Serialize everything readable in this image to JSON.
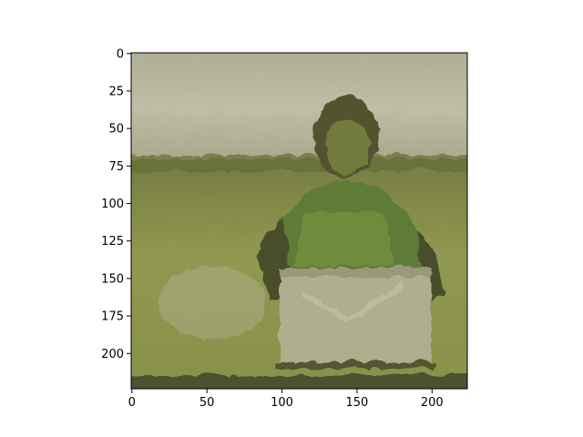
{
  "figure": {
    "type": "image-plot",
    "image_description_colors": {
      "sky": "#d8d6c0",
      "field": "#8a9a3a",
      "field_dark": "#556020",
      "figure_green": "#5f8a2a",
      "figure_dark": "#2a2a10",
      "box": "#c8c8a8",
      "bottom_strip": "#2f3a18"
    },
    "x_axis": {
      "range": [
        0,
        224
      ],
      "ticks": [
        {
          "value": 0,
          "label": "0"
        },
        {
          "value": 50,
          "label": "50"
        },
        {
          "value": 100,
          "label": "100"
        },
        {
          "value": 150,
          "label": "150"
        },
        {
          "value": 200,
          "label": "200"
        }
      ]
    },
    "y_axis": {
      "range": [
        0,
        224
      ],
      "inverted": true,
      "ticks": [
        {
          "value": 0,
          "label": "0"
        },
        {
          "value": 25,
          "label": "25"
        },
        {
          "value": 50,
          "label": "50"
        },
        {
          "value": 75,
          "label": "75"
        },
        {
          "value": 100,
          "label": "100"
        },
        {
          "value": 125,
          "label": "125"
        },
        {
          "value": 150,
          "label": "150"
        },
        {
          "value": 175,
          "label": "175"
        },
        {
          "value": 200,
          "label": "200"
        }
      ]
    }
  }
}
